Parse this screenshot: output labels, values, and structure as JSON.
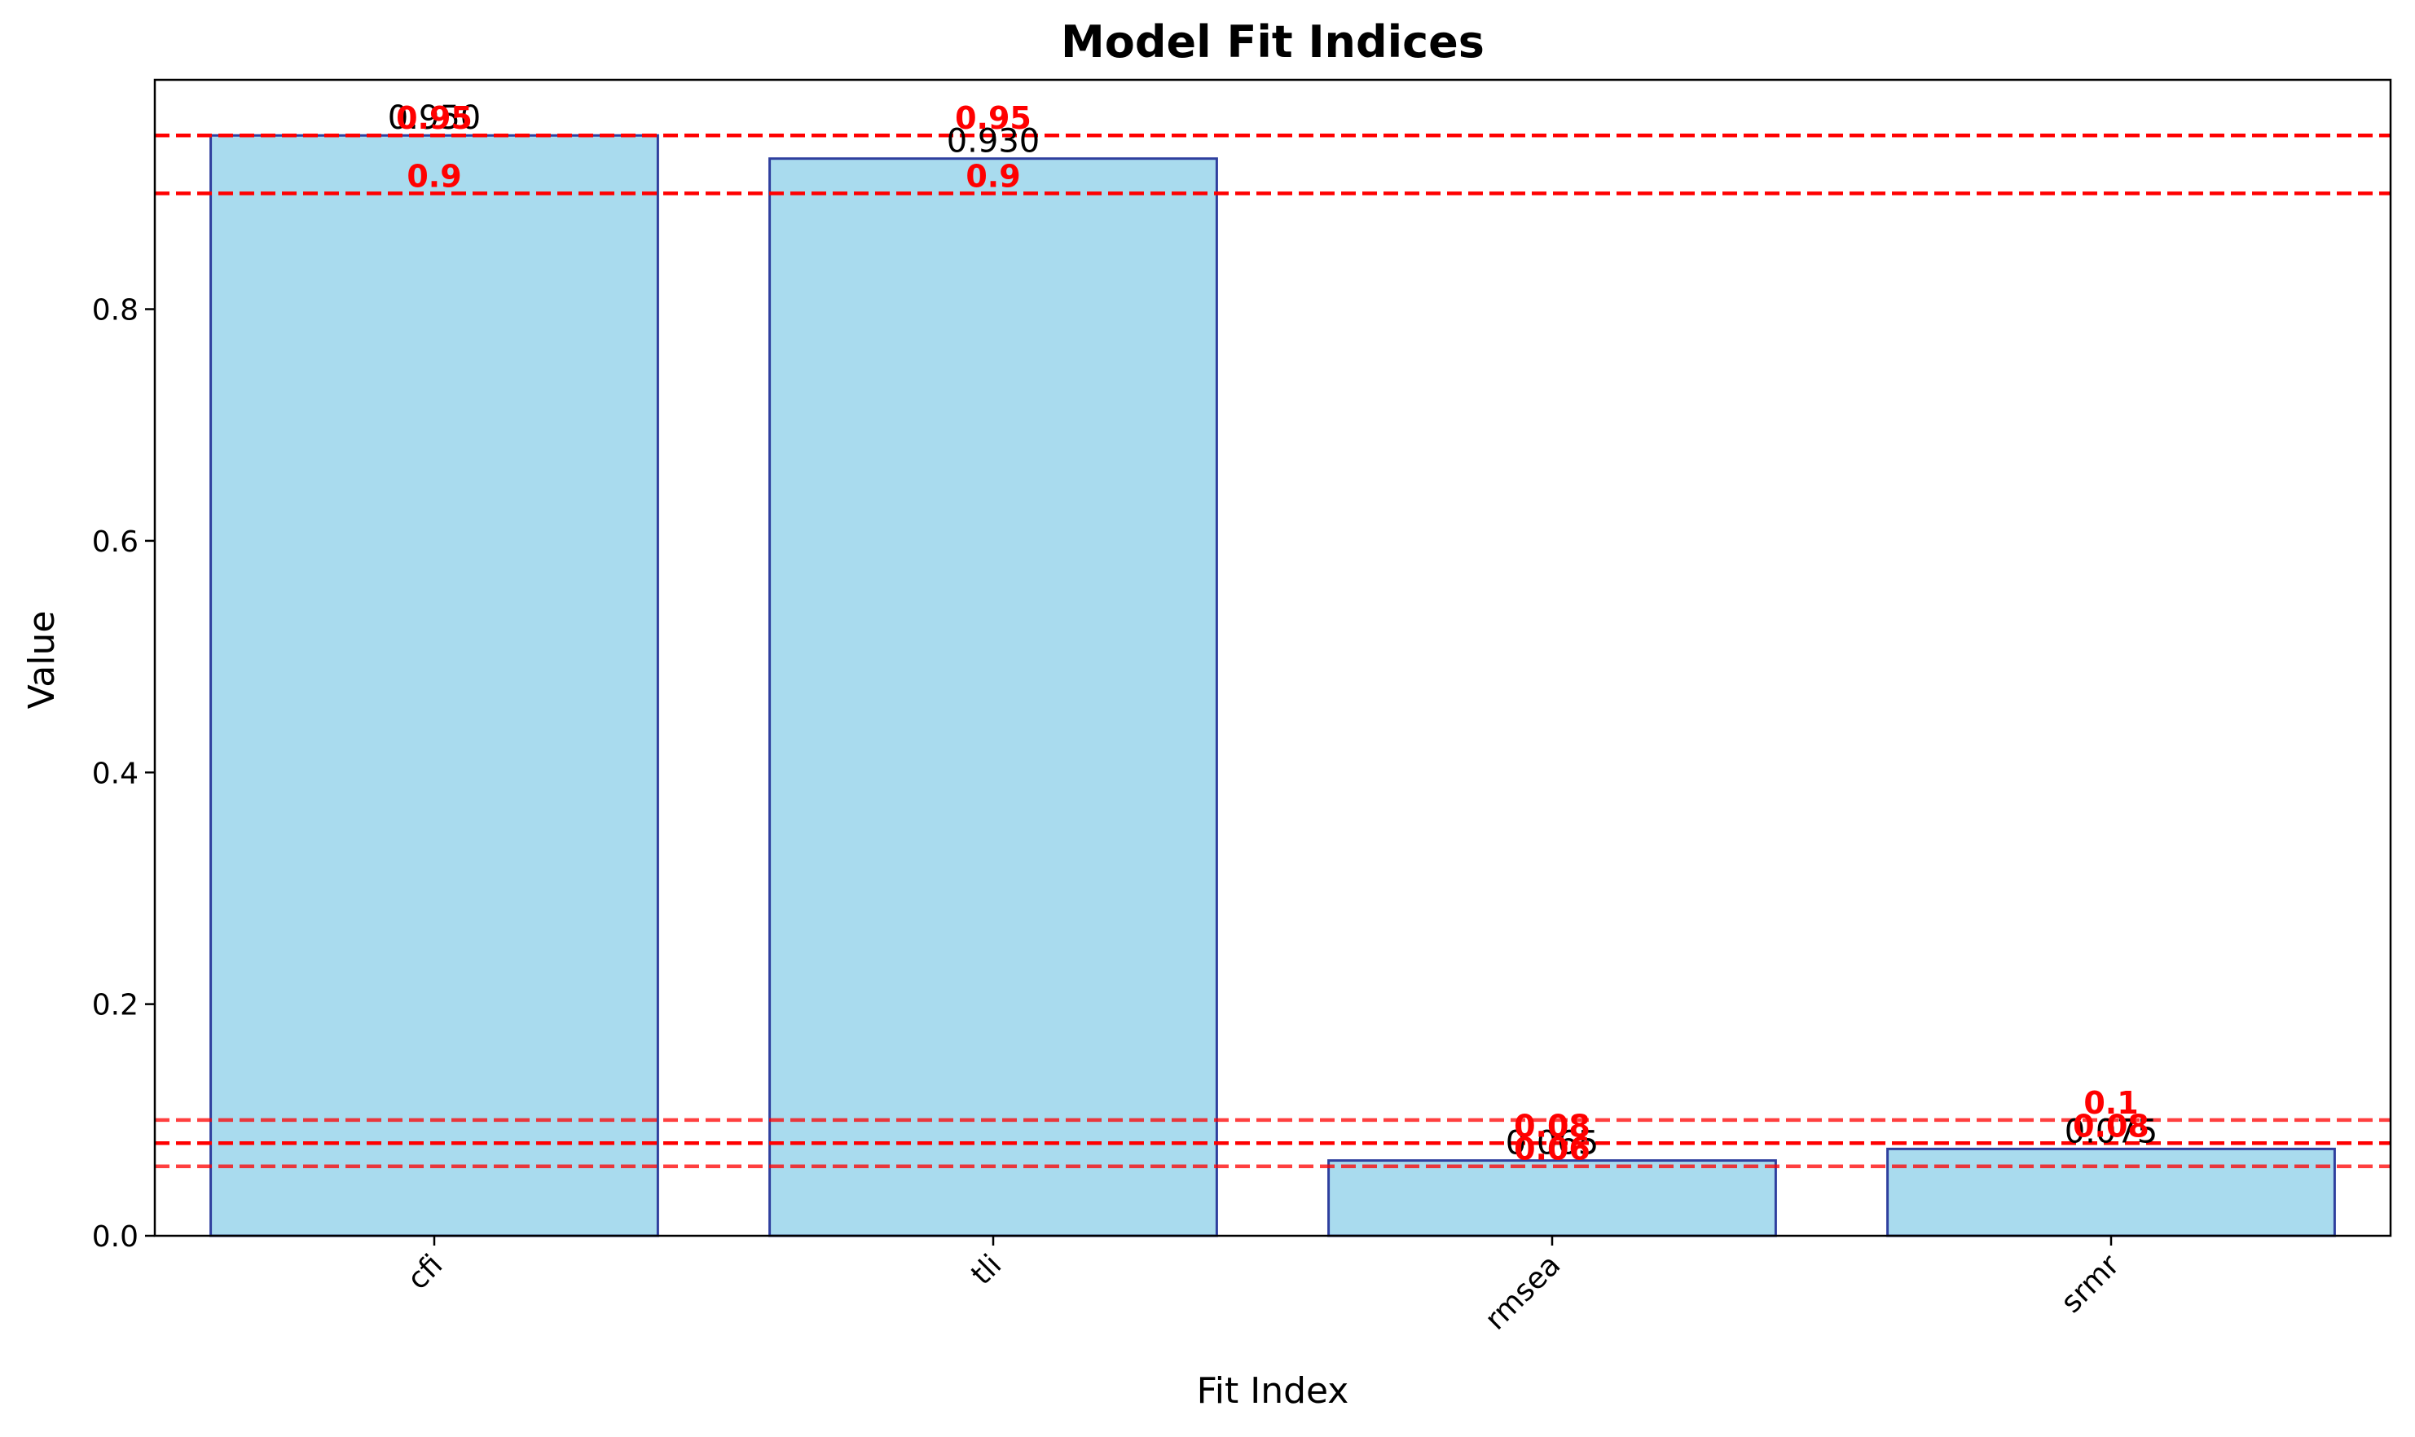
{
  "chart_data": {
    "type": "bar",
    "title": "Model Fit Indices",
    "xlabel": "Fit Index",
    "ylabel": "Value",
    "categories": [
      "cfi",
      "tli",
      "rmsea",
      "srmr"
    ],
    "values": [
      0.95,
      0.93,
      0.065,
      0.075
    ],
    "value_labels": [
      "0.950",
      "0.930",
      "0.065",
      "0.075"
    ],
    "ylim": [
      0,
      0.998
    ],
    "yticks": [
      0.0,
      0.2,
      0.4,
      0.6,
      0.8
    ],
    "ytick_labels": [
      "0.0",
      "0.2",
      "0.4",
      "0.6",
      "0.8"
    ],
    "grid": false,
    "bar_fill": "#a9dbee",
    "bar_edge": "#2f3f9e",
    "threshold_color": "#ff0000",
    "thresholds": [
      {
        "value": 0.95,
        "label": "0.95",
        "bars": [
          "cfi",
          "tli"
        ]
      },
      {
        "value": 0.9,
        "label": "0.9",
        "bars": [
          "cfi",
          "tli"
        ]
      },
      {
        "value": 0.1,
        "label": "0.1",
        "bars": [
          "srmr"
        ]
      },
      {
        "value": 0.08,
        "label": "0.08",
        "bars": [
          "rmsea",
          "srmr"
        ]
      },
      {
        "value": 0.06,
        "label": "0.06",
        "bars": [
          "rmsea"
        ]
      }
    ]
  }
}
